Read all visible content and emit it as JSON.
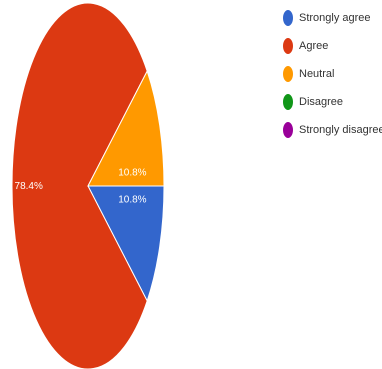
{
  "chart_data": {
    "type": "pie",
    "categories": [
      "Strongly agree",
      "Agree",
      "Neutral",
      "Disagree",
      "Strongly disagree"
    ],
    "values": [
      10.8,
      78.4,
      10.8,
      0,
      0
    ],
    "data_labels": [
      "10.8%",
      "78.4%",
      "10.8%",
      "",
      ""
    ],
    "colors": [
      "#3366cc",
      "#dc3912",
      "#ff9900",
      "#109618",
      "#990099"
    ],
    "legend_position": "right"
  }
}
